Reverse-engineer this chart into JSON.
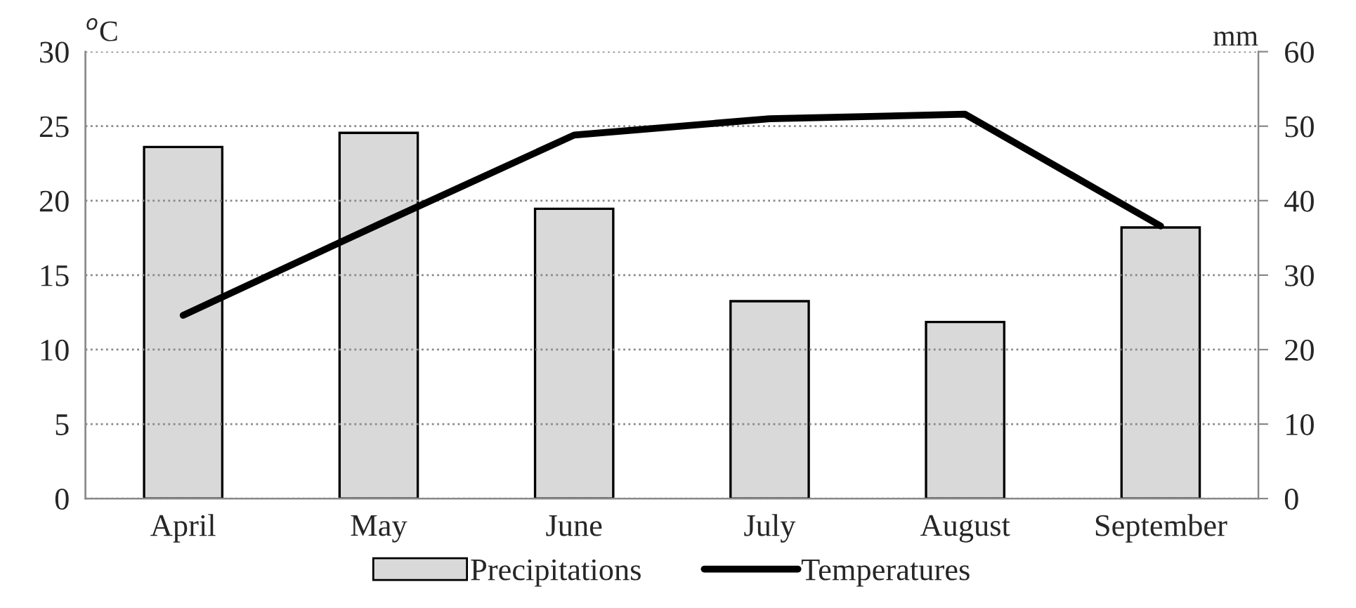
{
  "chart_data": {
    "type": "bar",
    "categories": [
      "April",
      "May",
      "June",
      "July",
      "August",
      "September"
    ],
    "series": [
      {
        "name": "Precipitations",
        "axis": "y2",
        "color": "#d9d9d9",
        "values": [
          47.2,
          49.1,
          38.9,
          26.5,
          23.7,
          36.4
        ]
      },
      {
        "name": "Temperatures",
        "type": "line",
        "color": "#000000",
        "values": [
          12.3,
          18.4,
          24.4,
          25.5,
          25.8,
          18.3
        ]
      }
    ],
    "ylabel": "$^{o}$C",
    "y2label": "mm",
    "ylim": [
      0,
      30
    ],
    "yticks": [
      0,
      5,
      10,
      15,
      20,
      25,
      30
    ],
    "y2lim": [
      0,
      60
    ],
    "y2ticks": [
      0,
      10,
      20,
      30,
      40,
      50,
      60
    ],
    "grid": "y",
    "legend": "bottom",
    "marker": "none",
    "line_style": "solid"
  }
}
